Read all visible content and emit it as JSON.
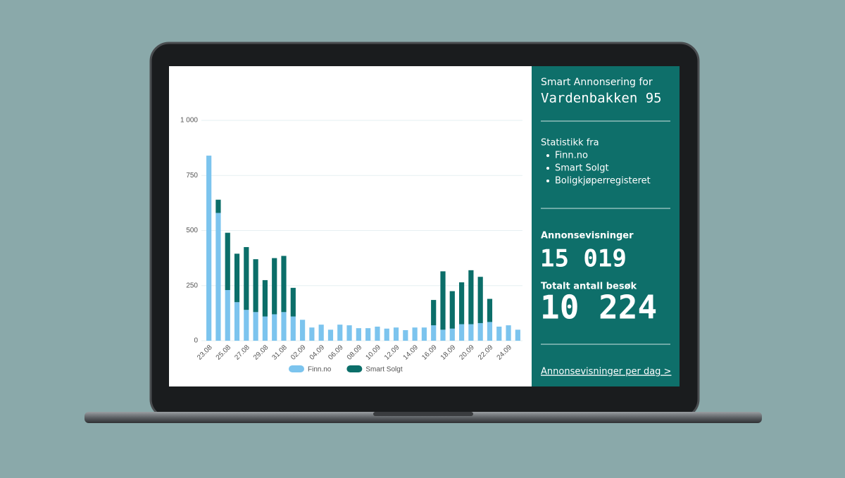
{
  "chart_data": {
    "type": "stacked_bar",
    "categories": [
      "23.08",
      null,
      "25.08",
      null,
      "27.08",
      null,
      "29.08",
      null,
      "31.08",
      null,
      "02.09",
      null,
      "04.09",
      null,
      "06.09",
      null,
      "08.09",
      null,
      "10.09",
      null,
      "12.09",
      null,
      "14.09",
      null,
      "16.09",
      null,
      "18.09",
      null,
      "20.09",
      null,
      "22.09",
      null,
      "24.09",
      null
    ],
    "series": [
      {
        "name": "Finn.no",
        "color": "#7cc4ee",
        "values": [
          840,
          580,
          230,
          175,
          140,
          130,
          110,
          120,
          130,
          110,
          95,
          60,
          73,
          50,
          73,
          70,
          57,
          57,
          64,
          55,
          60,
          48,
          60,
          60,
          70,
          50,
          55,
          75,
          75,
          80,
          85,
          64,
          70,
          50
        ]
      },
      {
        "name": "Smart Solgt",
        "color": "#0b6e69",
        "values": [
          0,
          60,
          260,
          220,
          285,
          240,
          165,
          255,
          255,
          130,
          0,
          0,
          0,
          0,
          0,
          0,
          0,
          0,
          0,
          0,
          0,
          0,
          0,
          0,
          115,
          265,
          170,
          190,
          245,
          210,
          105,
          0,
          0,
          0
        ]
      }
    ],
    "ylim": [
      0,
      1000
    ],
    "yticks": [
      0,
      250,
      500,
      750,
      {
        "value": 1000,
        "label": "1 000"
      }
    ],
    "grid": true,
    "legend": "bottom"
  },
  "panel": {
    "title": "Smart Annonsering for",
    "address": "Vardenbakken 95",
    "sources_heading": "Statistikk fra",
    "sources": [
      "Finn.no",
      "Smart Solgt",
      "Boligkjøperregisteret"
    ],
    "views_label": "Annonsevisninger",
    "views": "15 019",
    "visits_label": "Totalt antall besøk",
    "visits": "10 224",
    "link": "Annonsevisninger per dag >"
  }
}
